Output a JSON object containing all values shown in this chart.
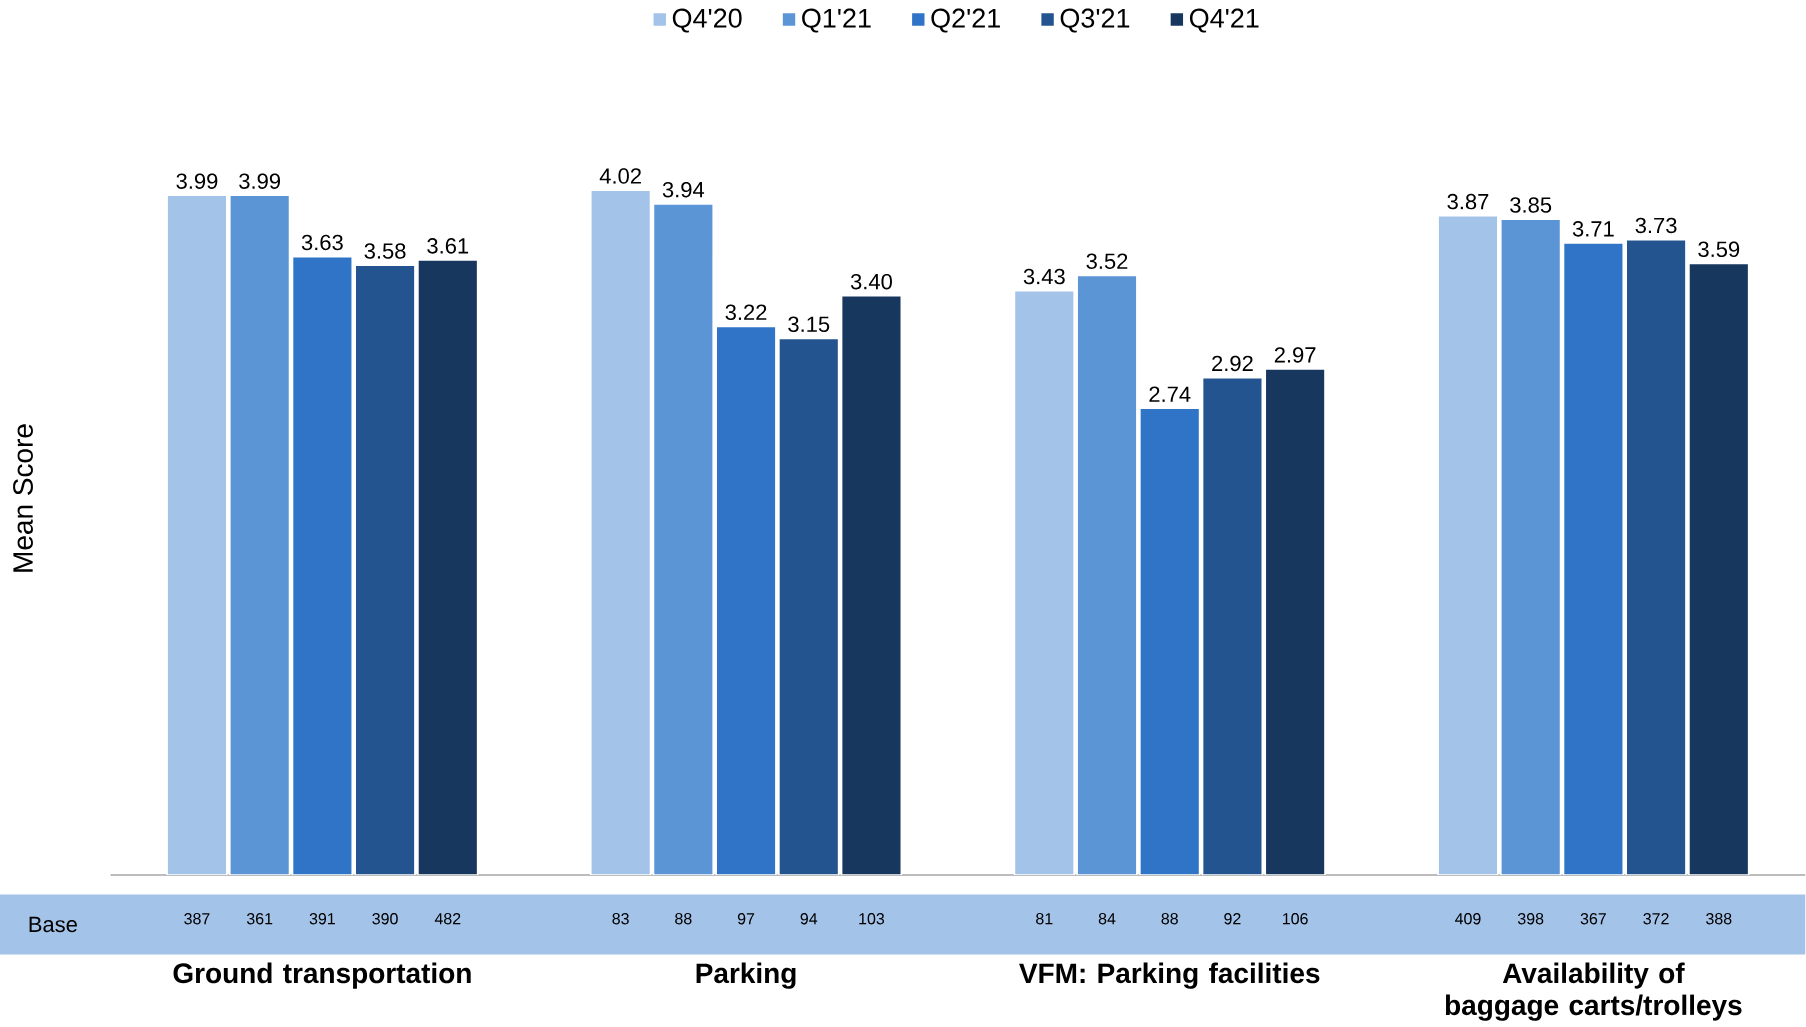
{
  "chart_data": {
    "type": "bar",
    "ylabel": "Mean Score",
    "legend": "top",
    "tick_labels": "x",
    "categories": [
      "Ground transportation",
      "Parking",
      "VFM: Parking facilities",
      "Availability of baggage carts/trolleys"
    ],
    "series": [
      {
        "name": "Q4'20",
        "color": "#a3c3e8",
        "values": [
          3.99,
          4.02,
          3.43,
          3.87
        ],
        "value_labels": [
          "3.99",
          "4.02",
          "3.43",
          "3.87"
        ]
      },
      {
        "name": "Q1'21",
        "color": "#5b95d6",
        "values": [
          3.99,
          3.94,
          3.52,
          3.85
        ],
        "value_labels": [
          "3.99",
          "3.94",
          "3.52",
          "3.85"
        ]
      },
      {
        "name": "Q2'21",
        "color": "#2f74c6",
        "values": [
          3.63,
          3.22,
          2.74,
          3.71
        ],
        "value_labels": [
          "3.63",
          "3.22",
          "2.74",
          "3.71"
        ]
      },
      {
        "name": "Q3'21",
        "color": "#23548f",
        "values": [
          3.58,
          3.15,
          2.92,
          3.73
        ],
        "value_labels": [
          "3.58",
          "3.15",
          "2.92",
          "3.73"
        ]
      },
      {
        "name": "Q4'21",
        "color": "#17375e",
        "values": [
          3.61,
          3.4,
          2.97,
          3.59
        ],
        "value_labels": [
          "3.61",
          "3.40",
          "2.97",
          "3.59"
        ]
      }
    ],
    "annotations": [
      "Base",
      "387",
      "361",
      "391",
      "390",
      "482",
      "83",
      "88",
      "97",
      "94",
      "103",
      "81",
      "84",
      "88",
      "92",
      "106",
      "409",
      "398",
      "367",
      "372",
      "388"
    ]
  }
}
